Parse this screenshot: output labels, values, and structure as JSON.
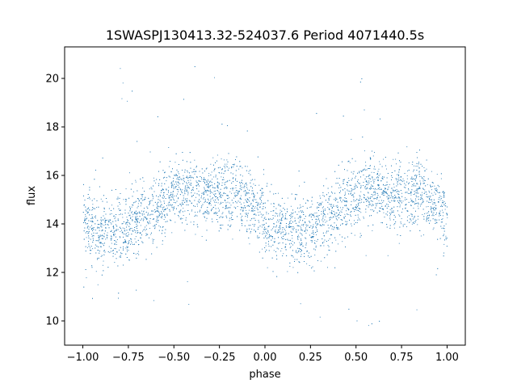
{
  "chart_data": {
    "type": "scatter",
    "title": "1SWASPJ130413.32-524037.6 Period 4071440.5s",
    "xlabel": "phase",
    "ylabel": "flux",
    "xlim": [
      -1.1,
      1.1
    ],
    "ylim": [
      9.0,
      21.3
    ],
    "xticks": [
      -1.0,
      -0.75,
      -0.5,
      -0.25,
      0.0,
      0.25,
      0.5,
      0.75,
      1.0
    ],
    "xtick_labels": [
      "−1.00",
      "−0.75",
      "−0.50",
      "−0.25",
      "0.00",
      "0.25",
      "0.50",
      "0.75",
      "1.00"
    ],
    "yticks": [
      10,
      12,
      14,
      16,
      18,
      20
    ],
    "ytick_labels": [
      "10",
      "12",
      "14",
      "16",
      "18",
      "20"
    ],
    "grid": false,
    "marker_color": "#1f77b4",
    "series": [
      {
        "x_range": [
          -1.0,
          1.0
        ],
        "period_in_phase": 1.0,
        "point_count": 5500,
        "mean_curve": {
          "phase": [
            0.0,
            0.05,
            0.1,
            0.15,
            0.2,
            0.25,
            0.3,
            0.35,
            0.4,
            0.45,
            0.5,
            0.55,
            0.6,
            0.65,
            0.7,
            0.75,
            0.8,
            0.85,
            0.9,
            0.95,
            1.0
          ],
          "flux": [
            14.0,
            13.8,
            13.7,
            13.7,
            13.7,
            13.9,
            14.2,
            14.4,
            14.6,
            15.0,
            15.2,
            15.3,
            15.4,
            15.3,
            15.2,
            15.1,
            15.2,
            15.3,
            15.0,
            14.6,
            14.3
          ]
        },
        "scatter_sd": 0.7,
        "flux_range": [
          9.7,
          20.6
        ]
      }
    ]
  }
}
